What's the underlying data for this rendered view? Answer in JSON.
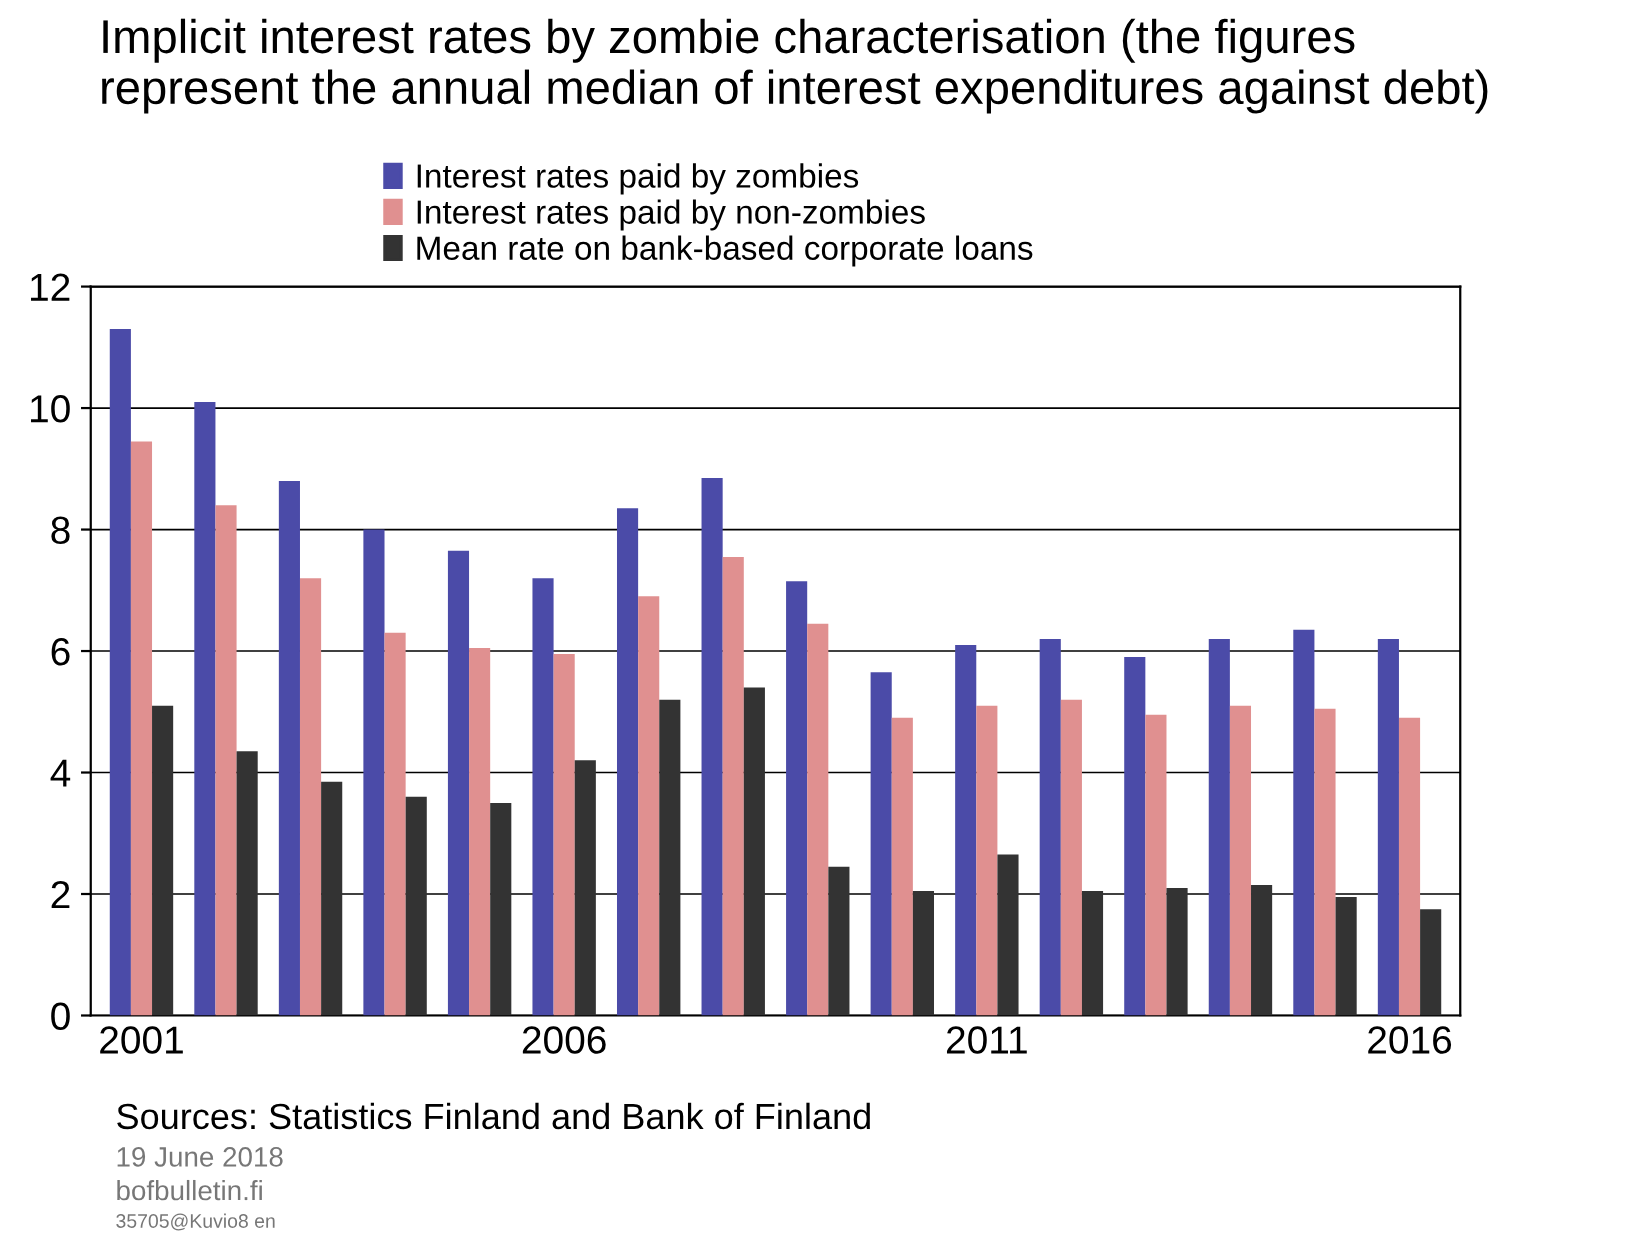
{
  "chart_data": {
    "type": "bar",
    "title": "Implicit interest rates by zombie characterisation (the figures\nrepresent the annual median of interest expenditures against debt)",
    "categories": [
      "2001",
      null,
      null,
      null,
      null,
      "2006",
      null,
      null,
      null,
      null,
      "2011",
      null,
      null,
      null,
      null,
      "2016"
    ],
    "series": [
      {
        "name": "Interest rates paid by zombies",
        "color": "#4b4ba8",
        "values": [
          11.3,
          10.1,
          8.8,
          8.0,
          7.65,
          7.2,
          8.35,
          8.85,
          7.15,
          5.65,
          6.1,
          6.2,
          5.9,
          6.2,
          6.35,
          6.2
        ]
      },
      {
        "name": "Interest rates paid by non-zombies",
        "color": "#e09090",
        "values": [
          9.45,
          8.4,
          7.2,
          6.3,
          6.05,
          5.95,
          6.9,
          7.55,
          6.45,
          4.9,
          5.1,
          5.2,
          4.95,
          5.1,
          5.05,
          4.9
        ]
      },
      {
        "name": "Mean rate on bank-based corporate loans",
        "color": "#333333",
        "values": [
          5.1,
          4.35,
          3.85,
          3.6,
          3.5,
          4.2,
          5.2,
          5.4,
          2.45,
          2.05,
          2.65,
          2.05,
          2.1,
          2.15,
          1.95,
          1.75
        ]
      }
    ],
    "ylim": [
      0,
      12
    ],
    "yticks": [
      0,
      2,
      4,
      6,
      8,
      10,
      12
    ],
    "grid": "y",
    "legend": "top",
    "annotations": [
      "Sources: Statistics Finland and Bank of Finland",
      "19 June 2018",
      "bofbulletin.fi",
      "35705@Kuvio8 en"
    ]
  }
}
